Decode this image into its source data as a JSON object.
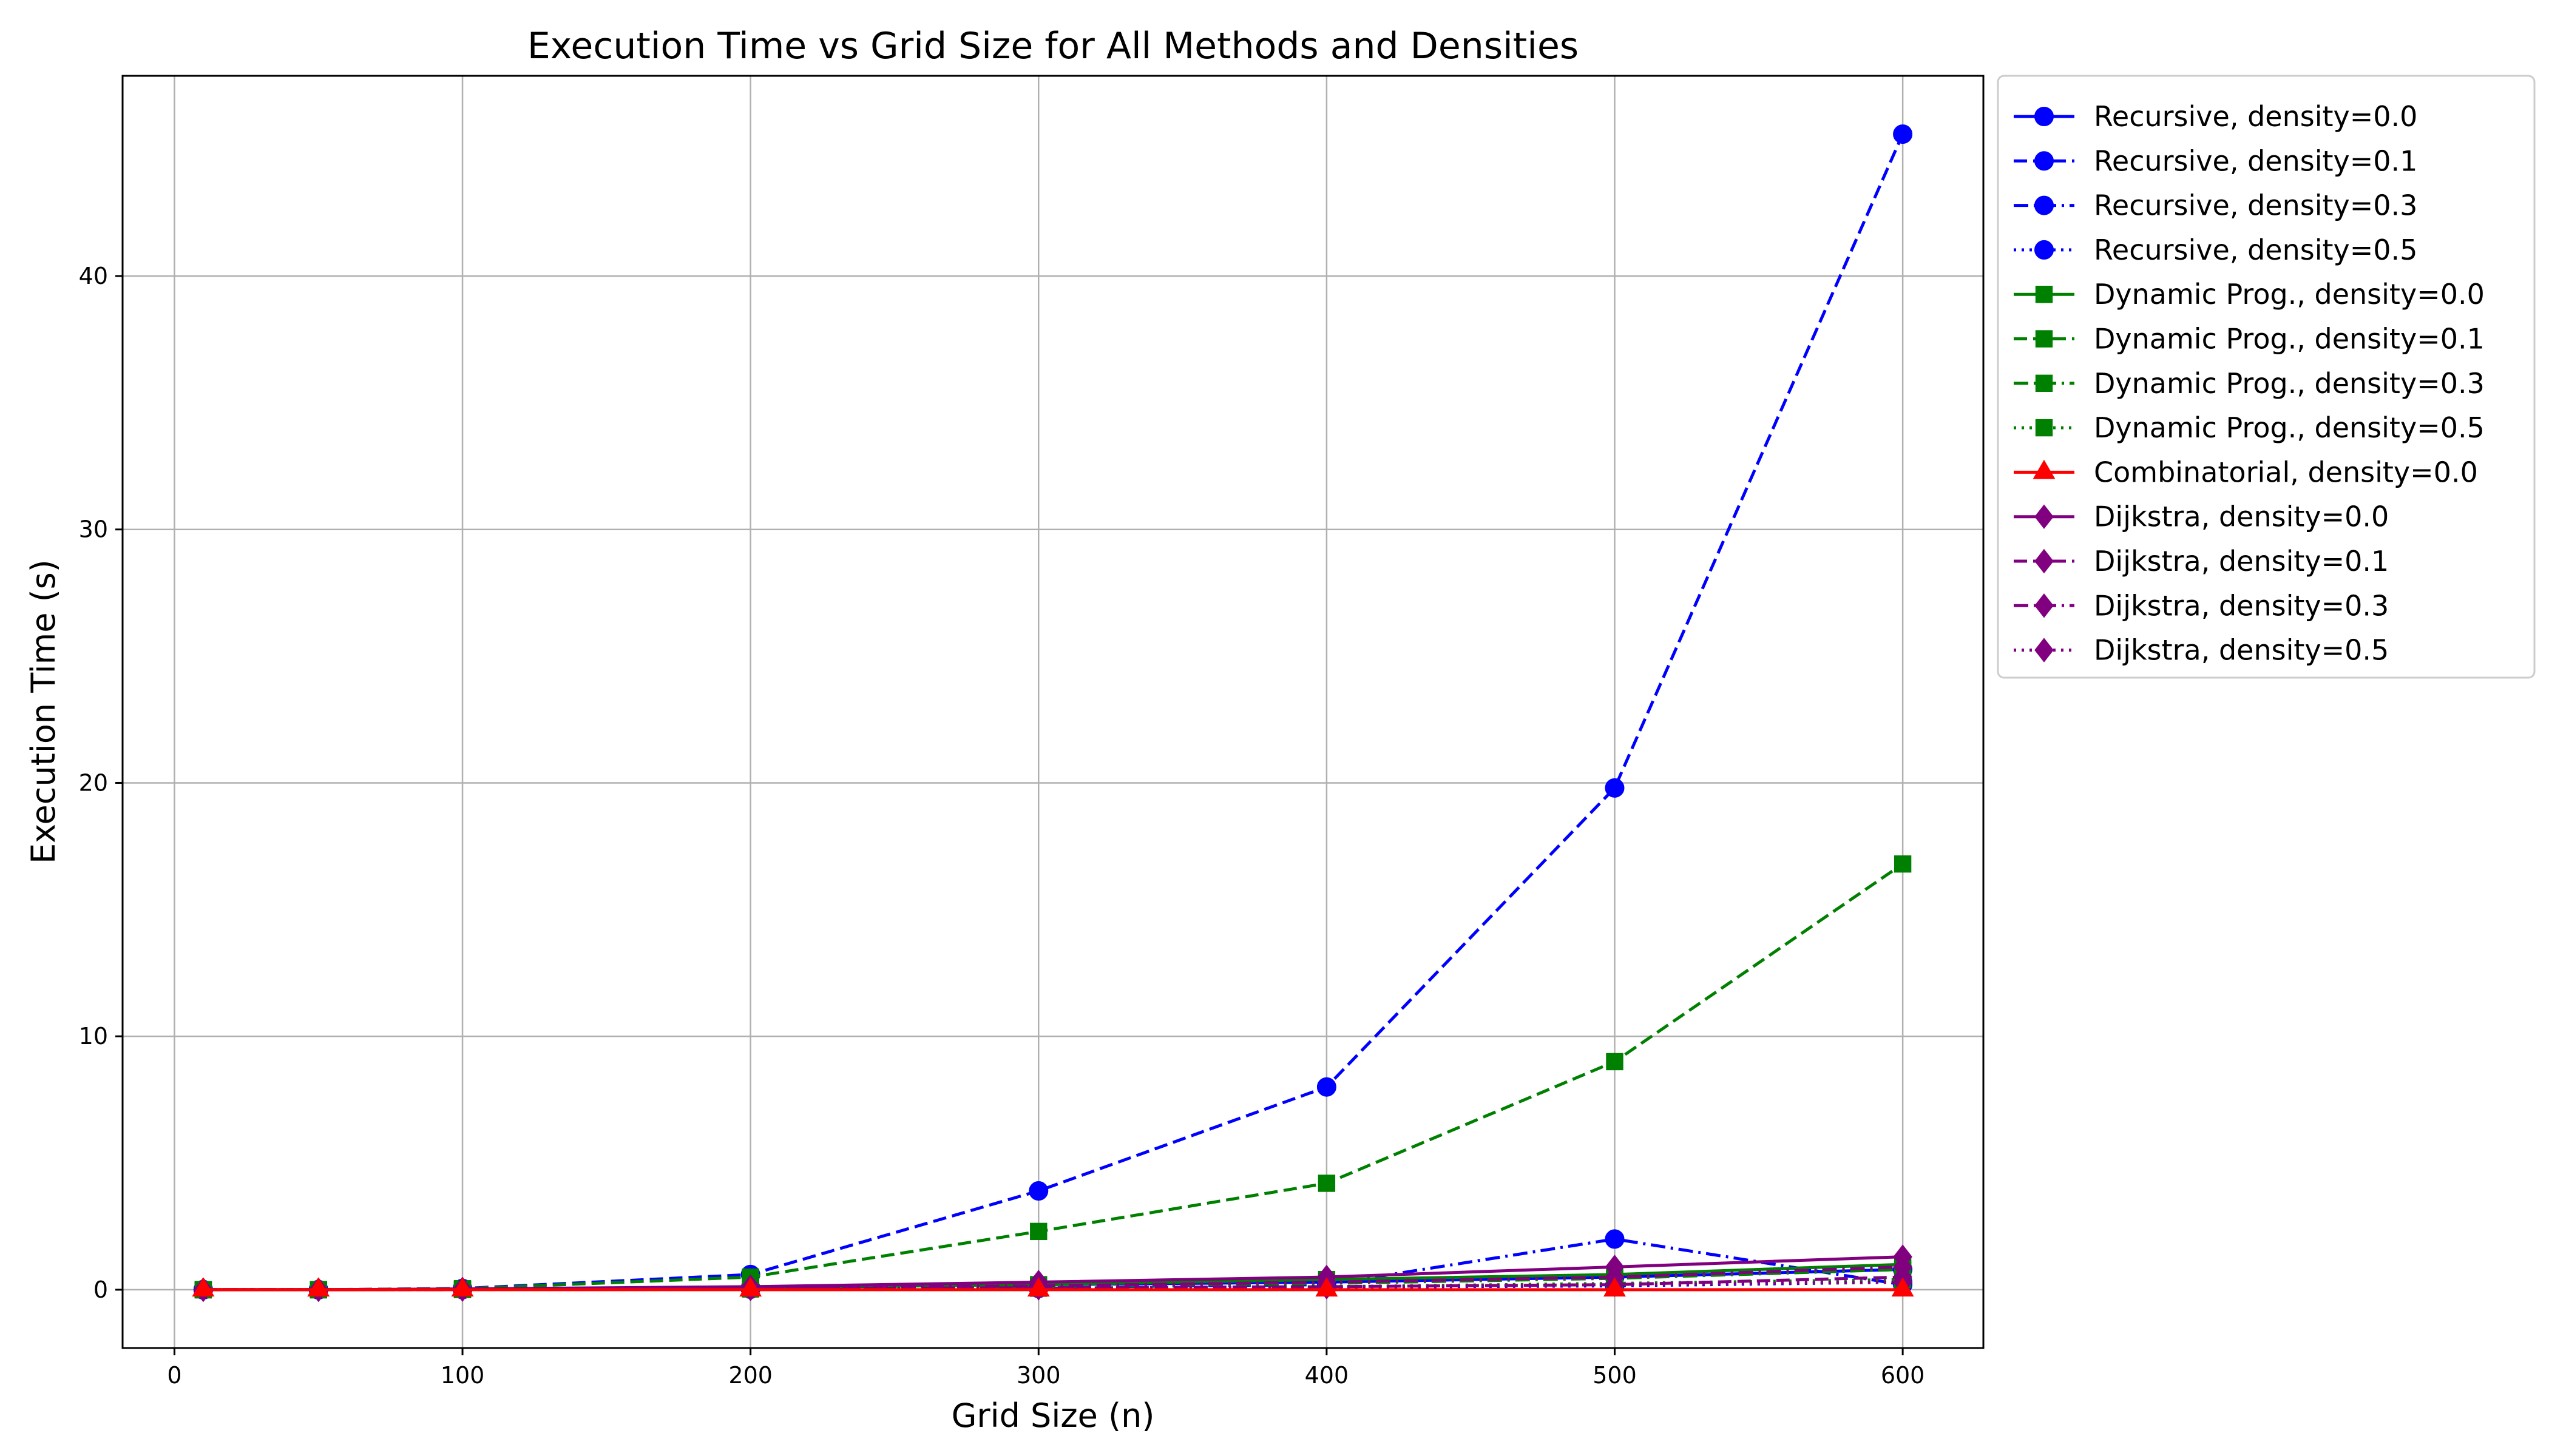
{
  "chart_data": {
    "type": "line",
    "title": "Execution Time vs Grid Size for All Methods and Densities",
    "xlabel": "Grid Size (n)",
    "ylabel": "Execution Time (s)",
    "xlim": [
      -18,
      628
    ],
    "ylim": [
      -2.3,
      47.9
    ],
    "xticks": [
      0,
      100,
      200,
      300,
      400,
      500,
      600
    ],
    "yticks": [
      0,
      10,
      20,
      30,
      40
    ],
    "grid": true,
    "legend_position": "outside-right",
    "x": [
      10,
      50,
      100,
      200,
      300,
      400,
      500,
      600
    ],
    "series": [
      {
        "name": "Recursive, density=0.0",
        "color": "#0000ff",
        "linestyle": "solid",
        "marker": "circle",
        "values": [
          0,
          0,
          0.02,
          0.08,
          0.2,
          0.3,
          0.5,
          0.8
        ]
      },
      {
        "name": "Recursive, density=0.1",
        "color": "#0000ff",
        "linestyle": "dashed",
        "marker": "circle",
        "values": [
          0,
          0,
          0.05,
          0.6,
          3.9,
          8.0,
          19.8,
          45.6
        ]
      },
      {
        "name": "Recursive, density=0.3",
        "color": "#0000ff",
        "linestyle": "dashdot",
        "marker": "circle",
        "values": [
          0,
          0,
          0.01,
          0.04,
          0.1,
          0.2,
          2.0,
          0.2
        ]
      },
      {
        "name": "Recursive, density=0.5",
        "color": "#0000ff",
        "linestyle": "dotted",
        "marker": "circle",
        "values": [
          0,
          0,
          0.01,
          0.02,
          0.05,
          0.1,
          0.15,
          0.3
        ]
      },
      {
        "name": "Dynamic Prog., density=0.0",
        "color": "#008000",
        "linestyle": "solid",
        "marker": "square",
        "values": [
          0,
          0,
          0.02,
          0.1,
          0.2,
          0.4,
          0.6,
          1.0
        ]
      },
      {
        "name": "Dynamic Prog., density=0.1",
        "color": "#008000",
        "linestyle": "dashed",
        "marker": "square",
        "values": [
          0,
          0,
          0.04,
          0.5,
          2.3,
          4.2,
          9.0,
          16.8
        ]
      },
      {
        "name": "Dynamic Prog., density=0.3",
        "color": "#008000",
        "linestyle": "dashdot",
        "marker": "square",
        "values": [
          0,
          0,
          0.01,
          0.05,
          0.12,
          0.25,
          0.45,
          0.8
        ]
      },
      {
        "name": "Dynamic Prog., density=0.5",
        "color": "#008000",
        "linestyle": "dotted",
        "marker": "square",
        "values": [
          0,
          0,
          0.01,
          0.03,
          0.06,
          0.12,
          0.25,
          0.4
        ]
      },
      {
        "name": "Combinatorial, density=0.0",
        "color": "#ff0000",
        "linestyle": "solid",
        "marker": "triangle",
        "values": [
          0,
          0,
          0,
          0,
          0,
          0,
          0,
          0
        ]
      },
      {
        "name": "Dijkstra, density=0.0",
        "color": "#800080",
        "linestyle": "solid",
        "marker": "diamond",
        "values": [
          0,
          0,
          0.03,
          0.12,
          0.3,
          0.5,
          0.9,
          1.3
        ]
      },
      {
        "name": "Dijkstra, density=0.1",
        "color": "#800080",
        "linestyle": "dashed",
        "marker": "diamond",
        "values": [
          0,
          0,
          0.01,
          0.04,
          0.08,
          0.12,
          0.2,
          0.5
        ]
      },
      {
        "name": "Dijkstra, density=0.3",
        "color": "#800080",
        "linestyle": "dashdot",
        "marker": "diamond",
        "values": [
          0,
          0,
          0.02,
          0.08,
          0.15,
          0.3,
          0.5,
          0.9
        ]
      },
      {
        "name": "Dijkstra, density=0.5",
        "color": "#800080",
        "linestyle": "dotted",
        "marker": "diamond",
        "values": [
          0,
          0,
          0.01,
          0.03,
          0.06,
          0.1,
          0.2,
          0.3
        ]
      }
    ]
  }
}
